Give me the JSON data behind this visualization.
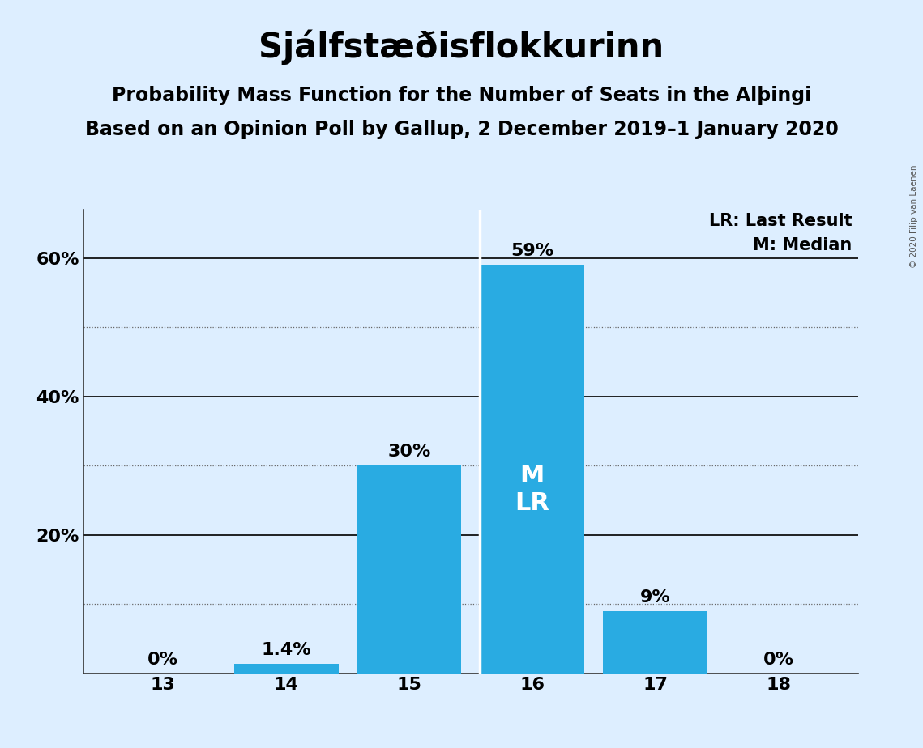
{
  "title": "Sjálfstæðisflokkurinn",
  "subtitle1": "Probability Mass Function for the Number of Seats in the Alþingi",
  "subtitle2": "Based on an Opinion Poll by Gallup, 2 December 2019–1 January 2020",
  "copyright": "© 2020 Filip van Laenen",
  "seats": [
    13,
    14,
    15,
    16,
    17,
    18
  ],
  "probabilities": [
    0.0,
    1.4,
    30.0,
    59.0,
    9.0,
    0.0
  ],
  "bar_color": "#29ABE2",
  "background_color": "#DDEEFF",
  "median_seat": 16,
  "last_result_seat": 16,
  "bar_labels": [
    "0%",
    "1.4%",
    "30%",
    "59%",
    "9%",
    "0%"
  ],
  "ylim": [
    0,
    67
  ],
  "yticks": [
    0,
    20,
    40,
    60
  ],
  "ytick_labels": [
    "",
    "20%",
    "40%",
    "60%"
  ],
  "dotted_ticks": [
    10,
    30,
    50
  ],
  "solid_ticks": [
    20,
    40,
    60
  ],
  "legend_lr": "LR: Last Result",
  "legend_m": "M: Median",
  "title_fontsize": 30,
  "subtitle_fontsize": 17,
  "label_fontsize": 16,
  "tick_fontsize": 16,
  "legend_fontsize": 15,
  "inner_label_fontsize": 22,
  "inner_label_color": "#FFFFFF",
  "bar_width": 0.85,
  "xlim_left": 12.35,
  "xlim_right": 18.65
}
